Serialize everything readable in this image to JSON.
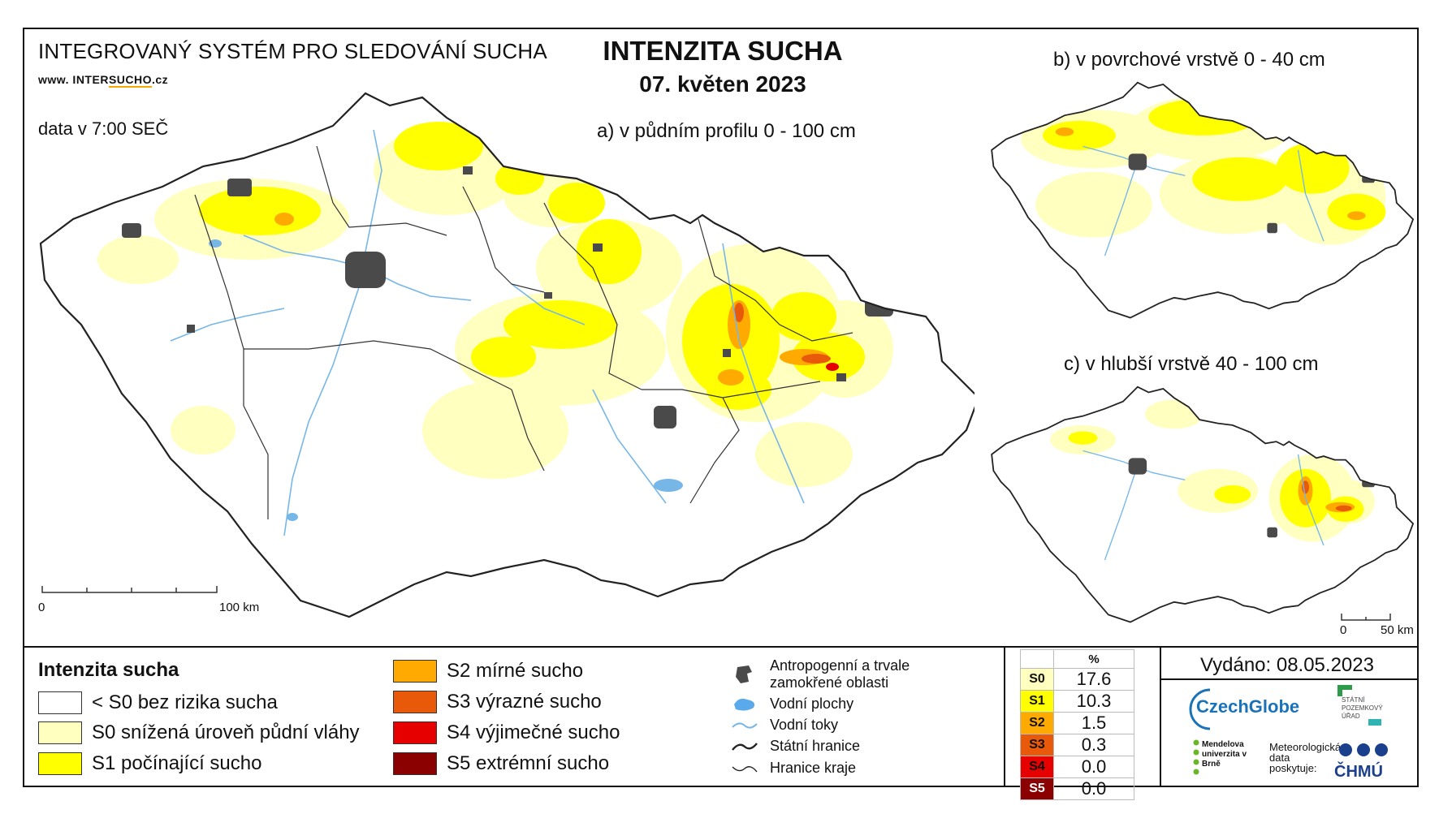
{
  "header": {
    "system_title": "INTEGROVANÝ SYSTÉM PRO SLEDOVÁNÍ SUCHA",
    "website_prefix": "www. INTER",
    "website_highlight": "SUCHO",
    "website_suffix": ".cz",
    "data_time": "data v 7:00 SEČ",
    "main_title": "INTENZITA SUCHA",
    "date": "07. květen 2023"
  },
  "maps": {
    "a_label": "a) v půdním profilu 0 - 100 cm",
    "b_label": "b) v povrchové vrstvě 0 - 40 cm",
    "c_label": "c) v hlubší vrstvě 40 - 100 cm",
    "scale_main": {
      "start": "0",
      "end": "100 km"
    },
    "scale_small": {
      "start": "0",
      "end": "50 km"
    }
  },
  "legend": {
    "title": "Intenzita sucha",
    "classes": [
      {
        "label": "< S0 bez rizika sucha",
        "color": "#ffffff"
      },
      {
        "label": "S0 snížená úroveň půdní vláhy",
        "color": "#ffffc0"
      },
      {
        "label": "S1 počínající sucho",
        "color": "#ffff00"
      },
      {
        "label": "S2 mírné sucho",
        "color": "#ffaa00"
      },
      {
        "label": "S3 výrazné sucho",
        "color": "#e85a0a"
      },
      {
        "label": "S4 výjimečné sucho",
        "color": "#e60000"
      },
      {
        "label": "S5 extrémní sucho",
        "color": "#8b0000"
      }
    ],
    "symbols": [
      {
        "label": "Antropogenní a trvale zamokřené oblasti",
        "icon": "urban-area-icon"
      },
      {
        "label": "Vodní plochy",
        "icon": "water-body-icon"
      },
      {
        "label": "Vodní toky",
        "icon": "river-icon"
      },
      {
        "label": "Státní hranice",
        "icon": "state-border-icon"
      },
      {
        "label": "Hranice kraje",
        "icon": "region-border-icon"
      }
    ]
  },
  "stats": {
    "header": "%",
    "rows": [
      {
        "cls": "S0",
        "value": "17.6",
        "color": "#ffffc0"
      },
      {
        "cls": "S1",
        "value": "10.3",
        "color": "#ffff00"
      },
      {
        "cls": "S2",
        "value": "1.5",
        "color": "#ffaa00"
      },
      {
        "cls": "S3",
        "value": "0.3",
        "color": "#e85a0a"
      },
      {
        "cls": "S4",
        "value": "0.0",
        "color": "#e60000"
      },
      {
        "cls": "S5",
        "value": "0.0",
        "color": "#8b0000"
      }
    ]
  },
  "footer": {
    "issued": "Vydáno: 08.05.2023",
    "logo_czechglobe": "CzechGlobe",
    "logo_spu": "STÁTNÍ POZEMKOVÝ ÚŘAD",
    "logo_mendel": "Mendelova univerzita v Brně",
    "logo_meteo": "Meteorologická data poskytuje:",
    "logo_chmu": "ČHMÚ"
  }
}
